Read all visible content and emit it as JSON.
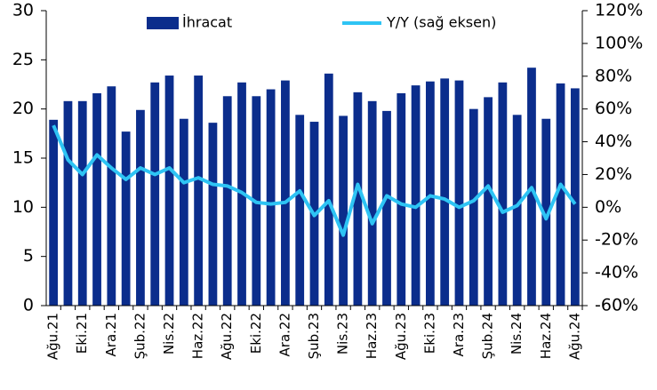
{
  "chart_data": {
    "type": "bar_line",
    "categories": [
      "Ağu.21",
      null,
      "Eki.21",
      null,
      "Ara.21",
      null,
      "Şub.22",
      null,
      "Nis.22",
      null,
      "Haz.22",
      null,
      "Ağu.22",
      null,
      "Eki.22",
      null,
      "Ara.22",
      null,
      "Şub.23",
      null,
      "Nis.23",
      null,
      "Haz.23",
      null,
      "Ağu.23",
      null,
      "Eki.23",
      null,
      "Ara.23",
      null,
      "Şub.24",
      null,
      "Nis.24",
      null,
      "Haz.24",
      null,
      "Ağu.24"
    ],
    "series": [
      {
        "name": "İhracat",
        "color": "#0b2d8c",
        "type": "bar",
        "axis": "y",
        "values": [
          18.9,
          20.8,
          20.8,
          21.6,
          22.3,
          17.7,
          19.9,
          22.7,
          23.4,
          19.0,
          23.4,
          18.6,
          21.3,
          22.7,
          21.3,
          22.0,
          22.9,
          19.4,
          18.7,
          23.6,
          19.3,
          21.7,
          20.8,
          19.8,
          21.6,
          22.4,
          22.8,
          23.1,
          22.9,
          20.0,
          21.2,
          22.7,
          19.4,
          24.2,
          19.0,
          22.6,
          22.1
        ]
      },
      {
        "name": "Y/Y (sağ eksen)",
        "color": "#2ec4f4",
        "type": "line",
        "axis": "y2",
        "values": [
          50,
          29,
          20,
          32,
          24,
          17,
          24,
          20,
          24,
          15,
          18,
          14,
          13,
          9,
          3,
          2,
          3,
          10,
          -5,
          4,
          -17,
          14,
          -10,
          7,
          2,
          0,
          7,
          5,
          0,
          4,
          13,
          -3,
          1,
          12,
          -7,
          14,
          2
        ]
      }
    ],
    "ylim": [
      0,
      30
    ],
    "yticks": [
      0,
      5,
      10,
      15,
      20,
      25,
      30
    ],
    "y2lim": [
      -60,
      120
    ],
    "y2ticks": [
      {
        "value": -60,
        "label": "-60%"
      },
      {
        "value": -40,
        "label": "-40%"
      },
      {
        "value": -20,
        "label": "-20%"
      },
      {
        "value": 0,
        "label": "0%"
      },
      {
        "value": 20,
        "label": "20%"
      },
      {
        "value": 40,
        "label": "40%"
      },
      {
        "value": 60,
        "label": "60%"
      },
      {
        "value": 80,
        "label": "80%"
      },
      {
        "value": 100,
        "label": "100%"
      },
      {
        "value": 120,
        "label": "120%"
      }
    ],
    "legend": "top"
  }
}
